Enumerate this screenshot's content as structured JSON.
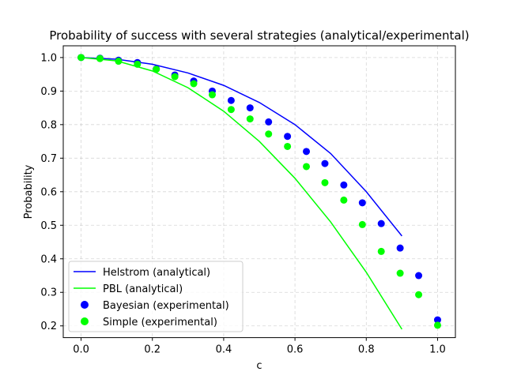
{
  "chart_data": {
    "type": "line",
    "title": "Probability of success with several strategies (analytical/experimental)",
    "xlabel": "c",
    "ylabel": "Probability",
    "xlim": [
      -0.05,
      1.05
    ],
    "ylim": [
      0.165,
      1.035
    ],
    "xticks": [
      0.0,
      0.2,
      0.4,
      0.6,
      0.8,
      1.0
    ],
    "xtick_labels": [
      "0.0",
      "0.2",
      "0.4",
      "0.6",
      "0.8",
      "1.0"
    ],
    "yticks": [
      0.2,
      0.3,
      0.4,
      0.5,
      0.6,
      0.7,
      0.8,
      0.9,
      1.0
    ],
    "ytick_labels": [
      "0.2",
      "0.3",
      "0.4",
      "0.5",
      "0.6",
      "0.7",
      "0.8",
      "0.9",
      "1.0"
    ],
    "grid": true,
    "legend_position": "lower-left",
    "series": [
      {
        "name": "Helstrom (analytical)",
        "kind": "line",
        "color": "#0000ff",
        "x": [
          0.0,
          0.1,
          0.2,
          0.3,
          0.4,
          0.5,
          0.6,
          0.7,
          0.8,
          0.9
        ],
        "y": [
          1.0,
          0.995,
          0.98,
          0.954,
          0.917,
          0.866,
          0.8,
          0.714,
          0.6,
          0.468
        ]
      },
      {
        "name": "PBL (analytical)",
        "kind": "line",
        "color": "#00ff00",
        "x": [
          0.0,
          0.1,
          0.2,
          0.3,
          0.4,
          0.5,
          0.6,
          0.7,
          0.8,
          0.9
        ],
        "y": [
          1.0,
          0.99,
          0.96,
          0.91,
          0.84,
          0.75,
          0.64,
          0.51,
          0.36,
          0.19
        ]
      },
      {
        "name": "Bayesian (experimental)",
        "kind": "scatter",
        "color": "#0000ff",
        "x": [
          0.0,
          0.053,
          0.105,
          0.158,
          0.211,
          0.263,
          0.316,
          0.368,
          0.421,
          0.474,
          0.526,
          0.579,
          0.632,
          0.684,
          0.737,
          0.789,
          0.842,
          0.895,
          0.947,
          1.0
        ],
        "y": [
          1.0,
          0.998,
          0.992,
          0.985,
          0.966,
          0.948,
          0.93,
          0.9,
          0.872,
          0.85,
          0.808,
          0.765,
          0.72,
          0.684,
          0.62,
          0.567,
          0.505,
          0.432,
          0.35,
          0.218
        ]
      },
      {
        "name": "Simple (experimental)",
        "kind": "scatter",
        "color": "#00ff00",
        "x": [
          0.0,
          0.053,
          0.105,
          0.158,
          0.211,
          0.263,
          0.316,
          0.368,
          0.421,
          0.474,
          0.526,
          0.579,
          0.632,
          0.684,
          0.737,
          0.789,
          0.842,
          0.895,
          0.947,
          1.0
        ],
        "y": [
          1.0,
          0.997,
          0.989,
          0.98,
          0.965,
          0.943,
          0.922,
          0.889,
          0.845,
          0.817,
          0.772,
          0.735,
          0.675,
          0.627,
          0.575,
          0.502,
          0.422,
          0.357,
          0.293,
          0.202
        ]
      }
    ]
  }
}
